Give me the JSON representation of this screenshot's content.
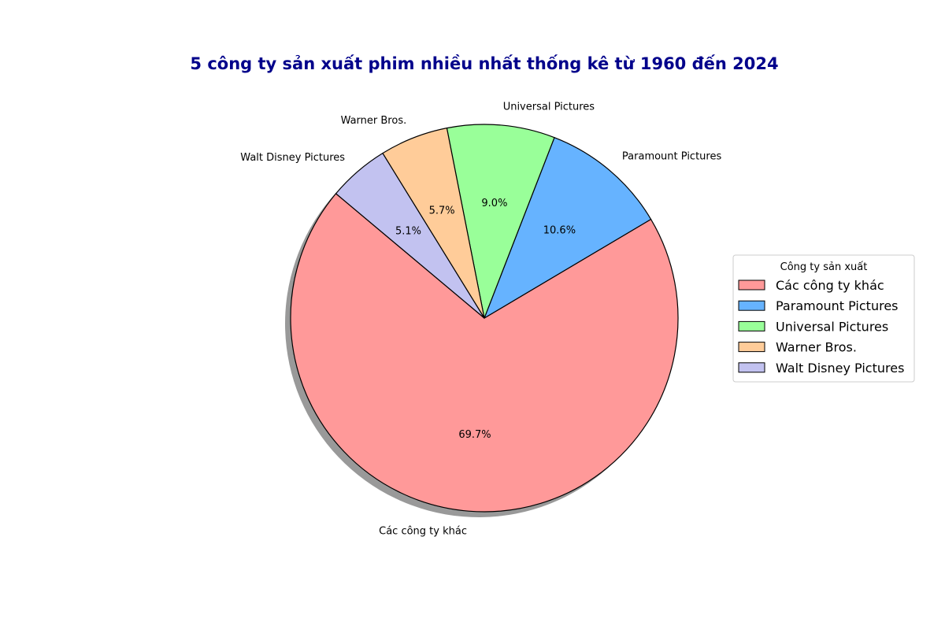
{
  "chart_data": {
    "type": "pie",
    "title": "5 công ty sản xuất phim nhiều nhất thống kê từ 1960 đến 2024",
    "title_color": "#00008b",
    "start_angle_deg": 140,
    "direction": "counterclockwise",
    "shadow": true,
    "slices": [
      {
        "label": "Các công ty khác",
        "value": 69.7,
        "pct_label": "69.7%",
        "color": "#ff9999"
      },
      {
        "label": "Paramount Pictures",
        "value": 10.6,
        "pct_label": "10.6%",
        "color": "#66b3ff"
      },
      {
        "label": "Universal Pictures",
        "value": 9.0,
        "pct_label": "9.0%",
        "color": "#99ff99"
      },
      {
        "label": "Warner Bros.",
        "value": 5.7,
        "pct_label": "5.7%",
        "color": "#ffcc99"
      },
      {
        "label": "Walt Disney Pictures",
        "value": 5.1,
        "pct_label": "5.1%",
        "color": "#c2c2f0"
      }
    ],
    "legend": {
      "title": "Công ty sản xuất",
      "placement": "center-right"
    }
  }
}
